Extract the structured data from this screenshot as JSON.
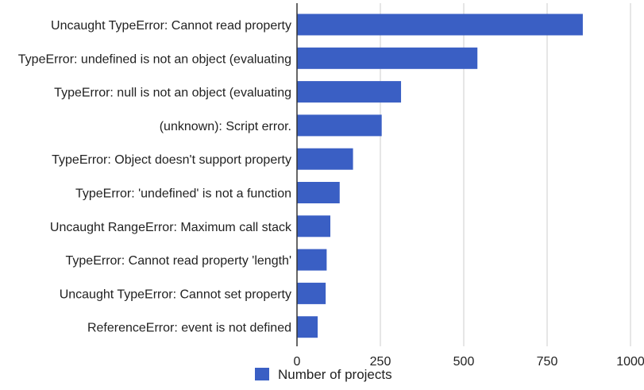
{
  "chart_data": {
    "type": "bar",
    "orientation": "horizontal",
    "categories": [
      "Uncaught TypeError: Cannot read property",
      "TypeError: undefined is not an object (evaluating",
      "TypeError: null is not an object (evaluating",
      "(unknown): Script error.",
      "TypeError: Object doesn't support property",
      "TypeError: 'undefined' is not a function",
      "Uncaught RangeError: Maximum call stack",
      "TypeError: Cannot read property 'length'",
      "Uncaught TypeError: Cannot set property",
      "ReferenceError: event is not defined"
    ],
    "series": [
      {
        "name": "Number of projects",
        "color": "#3a5fc4",
        "values": [
          857,
          541,
          312,
          254,
          168,
          128,
          100,
          89,
          86,
          62
        ]
      }
    ],
    "title": "",
    "xlabel": "",
    "ylabel": "",
    "xlim": [
      0,
      1000
    ],
    "xticks": [
      0,
      250,
      500,
      750,
      1000
    ],
    "xtick_labels": [
      "0",
      "250",
      "500",
      "750",
      "1000"
    ],
    "grid": true,
    "legend_position": "bottom"
  },
  "colors": {
    "bar": "#3a5fc4",
    "grid": "#cccccc",
    "axis": "#333333",
    "text": "#222222"
  }
}
